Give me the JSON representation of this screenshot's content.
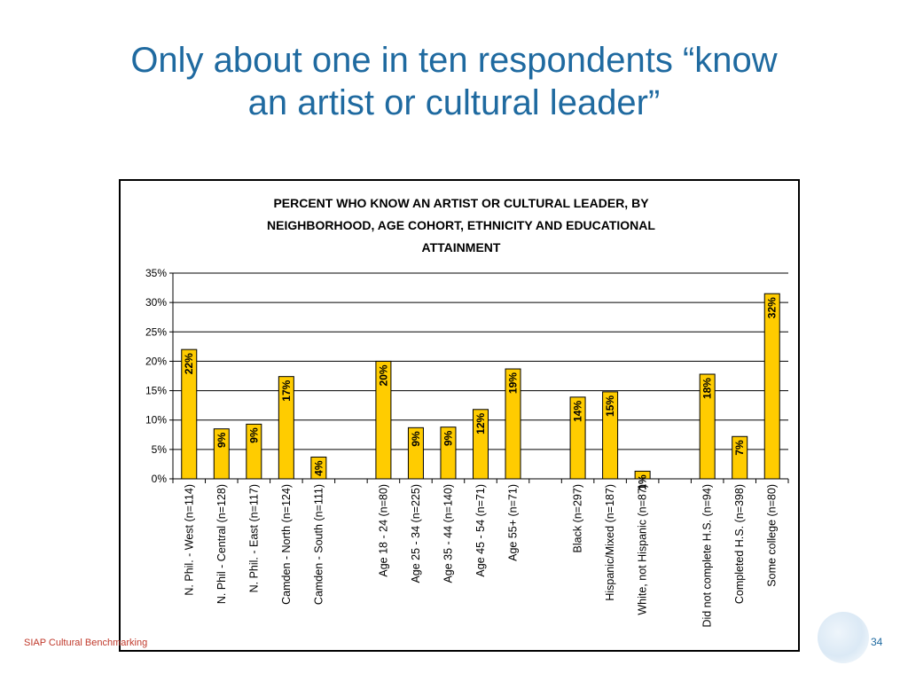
{
  "slide": {
    "title_line1": "Only about one in ten respondents “know",
    "title_line2": "an artist or cultural leader”",
    "footer": "SIAP Cultural Benchmarking",
    "page_number": "34"
  },
  "colors": {
    "bar": "#ffcc00",
    "bar_stroke": "#000000",
    "title": "#1f6aa0",
    "footer": "#c0392b"
  },
  "chart_data": {
    "type": "bar",
    "title": [
      "PERCENT WHO KNOW AN ARTIST OR CULTURAL LEADER, BY",
      "NEIGHBORHOOD, AGE COHORT, ETHNICITY AND EDUCATIONAL",
      "ATTAINMENT"
    ],
    "ylim": [
      0,
      35
    ],
    "yticks": [
      "0%",
      "5%",
      "10%",
      "15%",
      "20%",
      "25%",
      "30%",
      "35%"
    ],
    "grid": true,
    "legend": "none",
    "categories": [
      "N. Phil. - West (n=114)",
      "N. Phil - Central (n=128)",
      "N. Phil. - East (n=117)",
      "Camden - North (n=124)",
      "Camden - South (n=111)",
      "",
      "Age 18 - 24 (n=80)",
      "Age 25 - 34 (n=225)",
      "Age 35 - 44 (n=140)",
      "Age 45 - 54 (n=71)",
      "Age 55+ (n=71)",
      "",
      "Black (n=297)",
      "Hispanic/Mixed (n=187)",
      "White, not Hispanic (n=87)",
      "",
      "Did not complete H.S. (n=94)",
      "Completed H.S. (n=398)",
      "Some college (n=80)"
    ],
    "values": [
      22,
      8.5,
      9.3,
      17.4,
      3.7,
      null,
      20,
      8.7,
      8.8,
      11.8,
      18.7,
      null,
      13.9,
      14.8,
      1.3,
      null,
      17.8,
      7.2,
      31.5
    ],
    "data_labels": [
      "22%",
      "9%",
      "9%",
      "17%",
      "4%",
      "",
      "20%",
      "9%",
      "9%",
      "12%",
      "19%",
      "",
      "14%",
      "15%",
      "1%",
      "",
      "18%",
      "7%",
      "32%"
    ]
  }
}
